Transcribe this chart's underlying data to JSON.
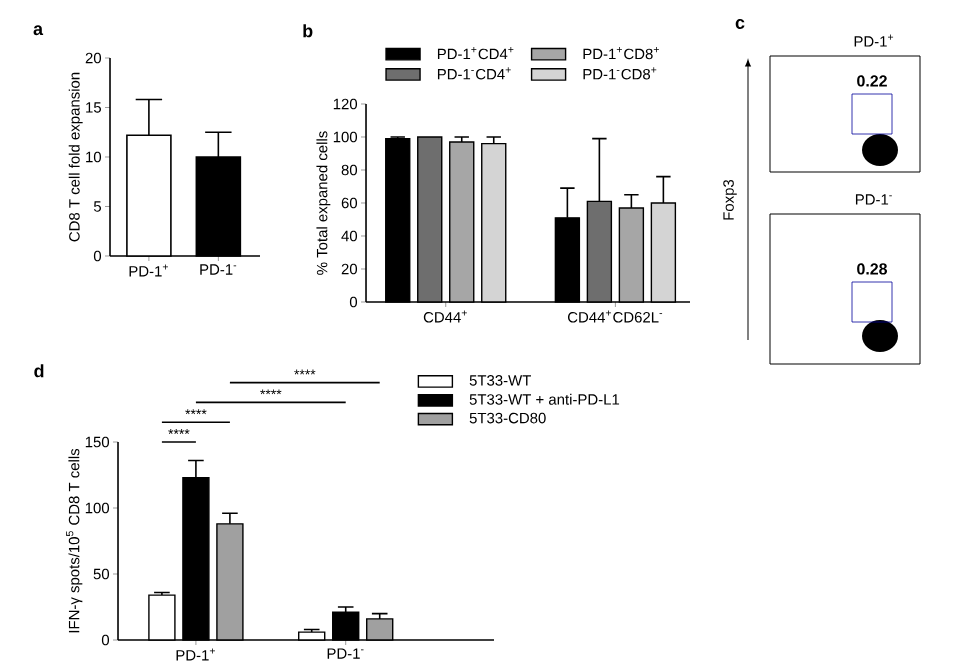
{
  "chart_data": [
    {
      "type": "bar",
      "annotations": [
        "a"
      ],
      "ylabel": "CD8 T cell fold expansion",
      "categories": [
        "PD-1$^{+}$",
        "PD-1$^{-}$"
      ],
      "values": [
        12.2,
        10.0
      ],
      "errors": [
        3.6,
        2.5
      ],
      "colors": [
        "#ffffff",
        "#000000"
      ],
      "ylim": [
        0,
        20
      ],
      "yticks": [
        0,
        5,
        10,
        15,
        20
      ]
    },
    {
      "type": "bar",
      "annotations": [
        "b"
      ],
      "ylabel": "% Total expaned cells",
      "categories": [
        "CD44$^{+}$",
        "CD44$^{+}$CD62L$^{-}$"
      ],
      "series": [
        {
          "name": "PD-1$^{+}$CD4$^{+}$",
          "color": "#000000",
          "values": [
            99,
            51
          ],
          "errors": [
            1,
            18
          ]
        },
        {
          "name": "PD-1$^{-}$CD4$^{+}$",
          "color": "#6e6e6e",
          "values": [
            100,
            61
          ],
          "errors": [
            null,
            38
          ]
        },
        {
          "name": "PD-1$^{+}$CD8$^{+}$",
          "color": "#a6a6a6",
          "values": [
            97,
            57
          ],
          "errors": [
            3,
            8
          ]
        },
        {
          "name": "PD-1$^{-}$CD8$^{+}$",
          "color": "#d4d4d4",
          "values": [
            96,
            60
          ],
          "errors": [
            4,
            16
          ]
        }
      ],
      "ylim": [
        0,
        120
      ],
      "yticks": [
        0,
        20,
        40,
        60,
        80,
        100,
        120
      ],
      "legend": "top"
    },
    {
      "type": "other",
      "annotations": [
        "c",
        "0.22"
      ],
      "title": "PD-1$^{+}$",
      "ylabel": "Foxp3"
    },
    {
      "type": "other",
      "annotations": [
        "0.28"
      ],
      "title": "PD-1$^{-}$"
    },
    {
      "type": "bar",
      "annotations": [
        "d",
        "****",
        "****",
        "****",
        "****"
      ],
      "ylabel": "IFN-γ spots/10$^{5}$ CD8 T cells",
      "categories": [
        "PD-1$^{+}$",
        "PD-1$^{-}$"
      ],
      "series": [
        {
          "name": "5T33-WT",
          "color": "#ffffff",
          "values": [
            34,
            6
          ],
          "errors": [
            2,
            2
          ]
        },
        {
          "name": "5T33-WT + anti-PD-L1",
          "color": "#000000",
          "values": [
            123,
            21
          ],
          "errors": [
            13,
            4
          ]
        },
        {
          "name": "5T33-CD80",
          "color": "#a0a0a0",
          "values": [
            88,
            16
          ],
          "errors": [
            8,
            4
          ]
        }
      ],
      "ylim": [
        0,
        150
      ],
      "yticks": [
        0,
        50,
        100,
        150
      ],
      "legend": "right"
    }
  ]
}
